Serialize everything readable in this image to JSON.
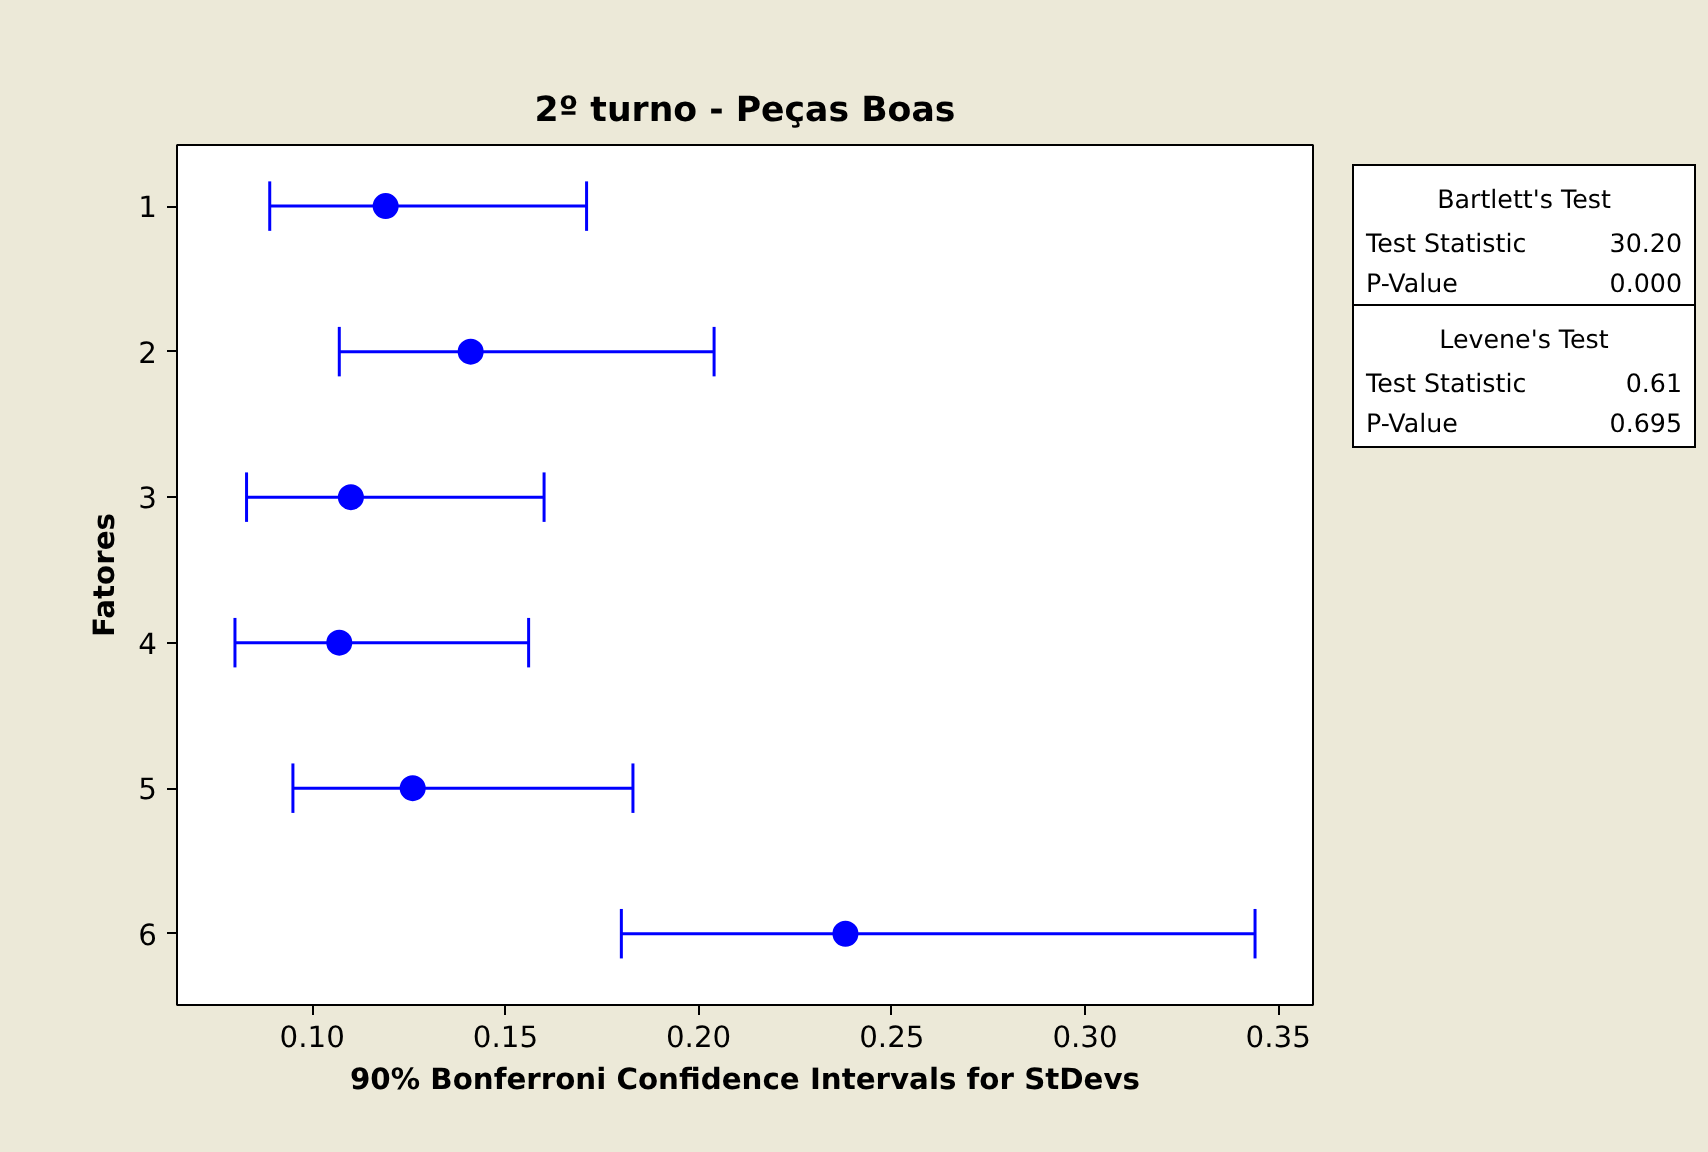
{
  "chart_data": {
    "type": "scatter",
    "orientation": "horizontal",
    "title": "2º turno - Peças Boas",
    "xlabel": "90% Bonferroni Confidence Intervals for StDevs",
    "ylabel": "Fatores",
    "categories": [
      "1",
      "2",
      "3",
      "4",
      "5",
      "6"
    ],
    "values": [
      0.119,
      0.141,
      0.11,
      0.107,
      0.126,
      0.238
    ],
    "errors": [
      [
        0.089,
        0.171
      ],
      [
        0.107,
        0.204
      ],
      [
        0.083,
        0.16
      ],
      [
        0.08,
        0.156
      ],
      [
        0.095,
        0.183
      ],
      [
        0.18,
        0.344
      ]
    ],
    "color": "#0000ff",
    "marker": "circle",
    "xlim": [
      0.065,
      0.359
    ],
    "xticks": [
      {
        "value": 0.1,
        "label": "0.10"
      },
      {
        "value": 0.15,
        "label": "0.15"
      },
      {
        "value": 0.2,
        "label": "0.20"
      },
      {
        "value": 0.25,
        "label": "0.25"
      },
      {
        "value": 0.3,
        "label": "0.30"
      },
      {
        "value": 0.35,
        "label": "0.35"
      }
    ],
    "grid": false,
    "annotations": [
      "Bartlett's Test",
      "Test Statistic",
      "30.20",
      "P-Value",
      "0.000",
      "Levene's Test",
      "Test Statistic",
      "0.61",
      "P-Value",
      "0.695"
    ]
  }
}
